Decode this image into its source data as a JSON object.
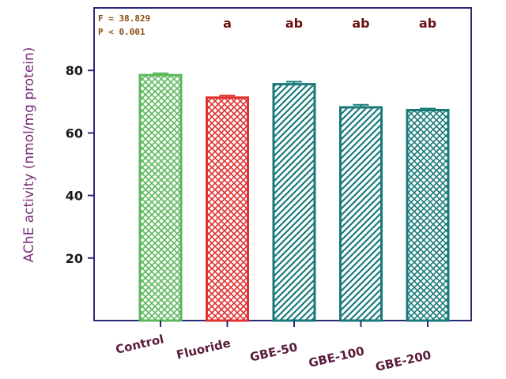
{
  "chart_data": {
    "type": "bar",
    "categories": [
      "Control",
      "Fluoride",
      "GBE-50",
      "GBE-100",
      "GBE-200"
    ],
    "values": [
      78.5,
      71.3,
      75.6,
      68.2,
      67.3
    ],
    "errors": [
      0.6,
      0.7,
      0.8,
      0.8,
      0.5
    ],
    "significance": [
      "",
      "a",
      "ab",
      "ab",
      "ab"
    ],
    "ylabel": "AChE activity (nmol/mg protein)",
    "xlabel": "",
    "ylim": [
      0,
      100
    ],
    "yticks": [
      20,
      40,
      60,
      80
    ],
    "annotations": [
      "F = 38.829",
      "P < 0.001"
    ],
    "bar_colors": [
      "#5cb85c",
      "#e03030",
      "#1a7a7a",
      "#1a7a7a",
      "#1a7a7a"
    ],
    "bar_patterns": [
      "crosshatch",
      "crosshatch",
      "diagonal",
      "diagonal",
      "crosshatch"
    ],
    "frame_color": "#2a2a7a",
    "grid": false
  }
}
